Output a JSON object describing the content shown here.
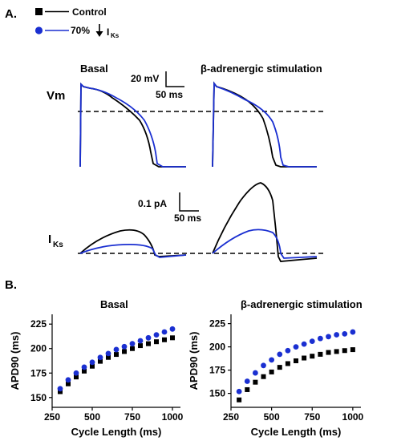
{
  "panel_a_label": "A.",
  "panel_b_label": "B.",
  "legend": {
    "control": "Control",
    "iks_prefix": "70%",
    "iks_symbol": "I",
    "iks_subscript": "Ks"
  },
  "vm": {
    "label": "Vm",
    "basal_title": "Basal",
    "beta_title": "β-adrenergic stimulation",
    "scale_mv": "20 mV",
    "scale_ms": "50 ms"
  },
  "iks": {
    "label_main": "I",
    "label_sub": "Ks",
    "scale_pa": "0.1 pA",
    "scale_ms": "50 ms"
  },
  "colors": {
    "control": "#000000",
    "reduced_iks": "#1a2fd1"
  },
  "chart_data": [
    {
      "type": "scatter",
      "title": "Basal",
      "xlabel": "Cycle Length (ms)",
      "ylabel": "APD90 (ms)",
      "xlim": [
        250,
        1050
      ],
      "ylim": [
        140,
        235
      ],
      "xticks": [
        250,
        500,
        750,
        1000
      ],
      "yticks": [
        150,
        175,
        200,
        225
      ],
      "x": [
        300,
        350,
        400,
        450,
        500,
        550,
        600,
        650,
        700,
        750,
        800,
        850,
        900,
        950,
        1000
      ],
      "series": [
        {
          "name": "Control",
          "color": "#000000",
          "marker": "square",
          "values": [
            156,
            164,
            171,
            177,
            182,
            187,
            191,
            194,
            197,
            200,
            203,
            205,
            207,
            209,
            211
          ]
        },
        {
          "name": "70% ↓ IKs",
          "color": "#1a2fd1",
          "marker": "circle",
          "values": [
            159,
            168,
            175,
            181,
            186,
            191,
            195,
            199,
            202,
            205,
            208,
            211,
            214,
            217,
            220
          ]
        }
      ]
    },
    {
      "type": "scatter",
      "title": "β-adrenergic stimulation",
      "xlabel": "Cycle Length (ms)",
      "ylabel": "APD90 (ms)",
      "xlim": [
        250,
        1050
      ],
      "ylim": [
        135,
        235
      ],
      "xticks": [
        250,
        500,
        750,
        1000
      ],
      "yticks": [
        150,
        175,
        200,
        225
      ],
      "x": [
        300,
        350,
        400,
        450,
        500,
        550,
        600,
        650,
        700,
        750,
        800,
        850,
        900,
        950,
        1000
      ],
      "series": [
        {
          "name": "Control",
          "color": "#000000",
          "marker": "square",
          "values": [
            143,
            154,
            162,
            168,
            173,
            178,
            182,
            185,
            188,
            190,
            192,
            194,
            195,
            196,
            197
          ]
        },
        {
          "name": "70% ↓ IKs",
          "color": "#1a2fd1",
          "marker": "circle",
          "values": [
            152,
            163,
            172,
            180,
            186,
            192,
            196,
            200,
            203,
            206,
            209,
            211,
            213,
            214,
            216
          ]
        }
      ]
    }
  ]
}
